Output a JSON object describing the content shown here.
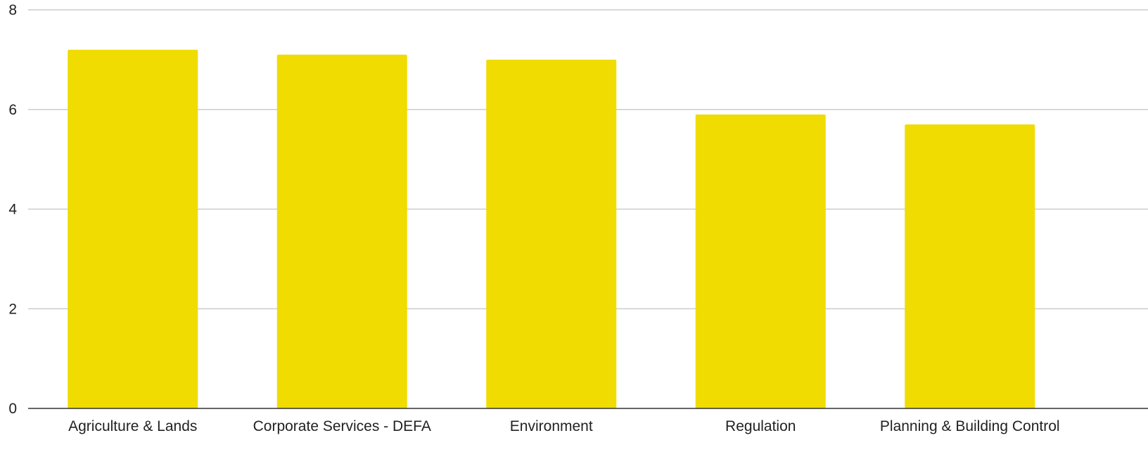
{
  "chart_data": {
    "type": "bar",
    "title": "",
    "xlabel": "",
    "ylabel": "",
    "categories": [
      "Agriculture & Lands",
      "Corporate Services - DEFA",
      "Environment",
      "Regulation",
      "Planning & Building Control"
    ],
    "values": [
      7.2,
      7.1,
      7.0,
      5.9,
      5.7
    ],
    "ylim": [
      0,
      8
    ],
    "yticks": [
      "0",
      "2",
      "4",
      "6",
      "8"
    ],
    "grid": true,
    "legend": "none",
    "colors": {
      "bar": "#f0dc00",
      "grid": "#cccccc",
      "axis": "#333333",
      "text": "#222222"
    }
  }
}
